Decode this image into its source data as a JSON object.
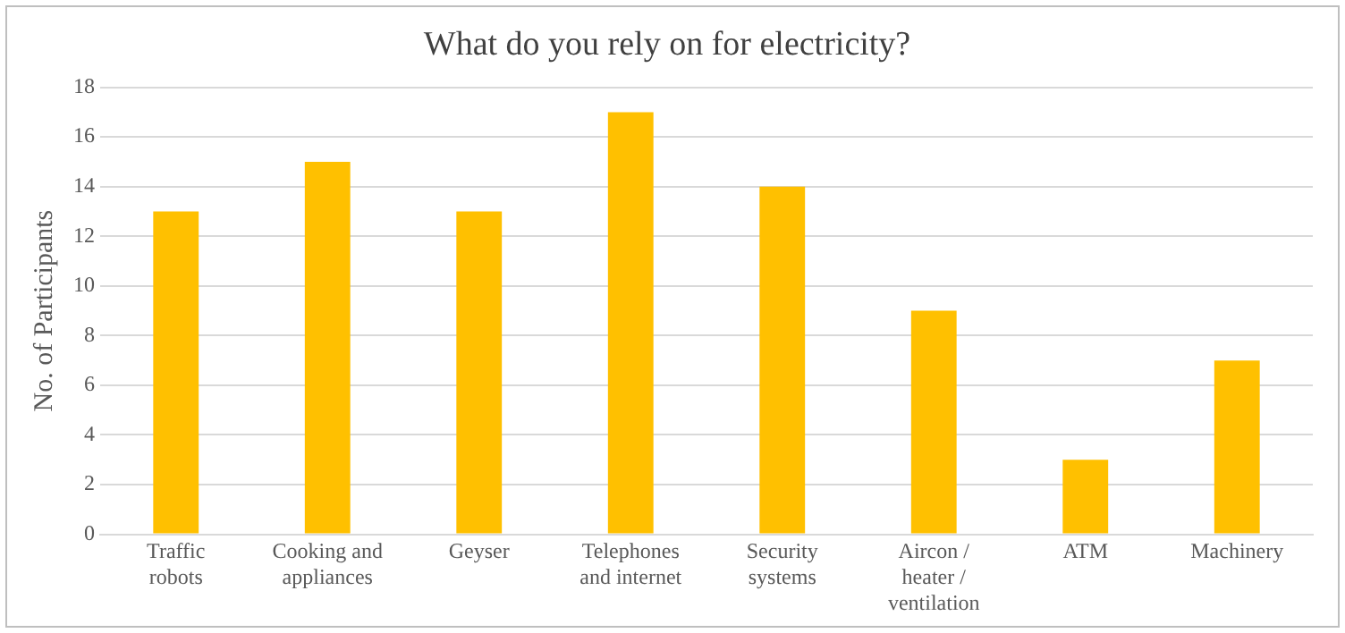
{
  "chart_data": {
    "type": "bar",
    "title": "What do you rely on for electricity?",
    "ylabel": "No. of Participants",
    "categories": [
      "Traffic robots",
      "Cooking and appliances",
      "Geyser",
      "Telephones and internet",
      "Security systems",
      "Aircon / heater / ventilation",
      "ATM",
      "Machinery"
    ],
    "values": [
      13,
      15,
      13,
      17,
      14,
      9,
      3,
      7
    ],
    "color": "#ffc000",
    "ylim": [
      0,
      18
    ],
    "yticks": [
      0,
      2,
      4,
      6,
      8,
      10,
      12,
      14,
      16,
      18
    ],
    "grid": "y",
    "legend": false
  }
}
